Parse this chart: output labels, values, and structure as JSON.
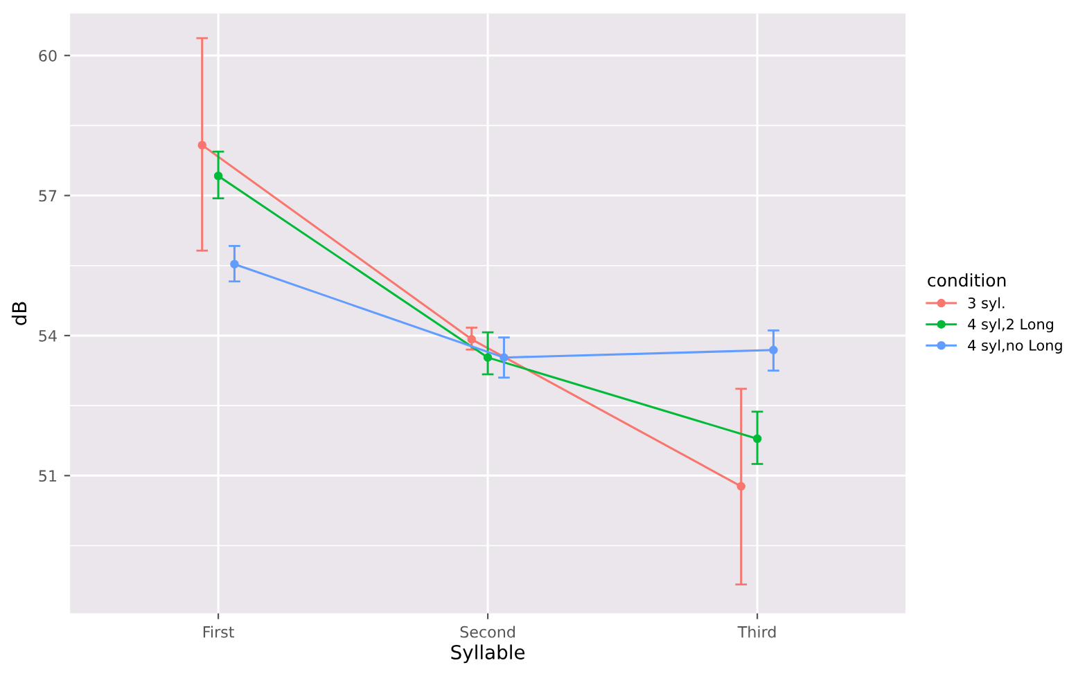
{
  "chart_data": {
    "type": "line",
    "xlabel": "Syllable",
    "ylabel": "dB",
    "legend_title": "condition",
    "legend": "right",
    "grid": true,
    "marker": "circle",
    "line_style": "solid",
    "categories": [
      "First",
      "Second",
      "Third"
    ],
    "ylim": [
      48.05,
      60.9
    ],
    "yticks": [
      51,
      54,
      57,
      60
    ],
    "series": [
      {
        "name": "3 syl.",
        "color": "#f8766d",
        "values": [
          58.08,
          53.92,
          50.77
        ],
        "errors": [
          [
            55.82,
            60.37
          ],
          [
            53.7,
            54.17
          ],
          [
            48.67,
            52.86
          ]
        ]
      },
      {
        "name": "4 syl,2 Long",
        "color": "#00ba38",
        "values": [
          57.42,
          53.53,
          51.79
        ],
        "errors": [
          [
            56.94,
            57.94
          ],
          [
            53.17,
            54.07
          ],
          [
            51.25,
            52.37
          ]
        ]
      },
      {
        "name": "4 syl,no Long",
        "color": "#619cff",
        "values": [
          55.53,
          53.53,
          53.69
        ],
        "errors": [
          [
            55.16,
            55.92
          ],
          [
            53.1,
            53.96
          ],
          [
            53.25,
            54.11
          ]
        ]
      }
    ]
  }
}
